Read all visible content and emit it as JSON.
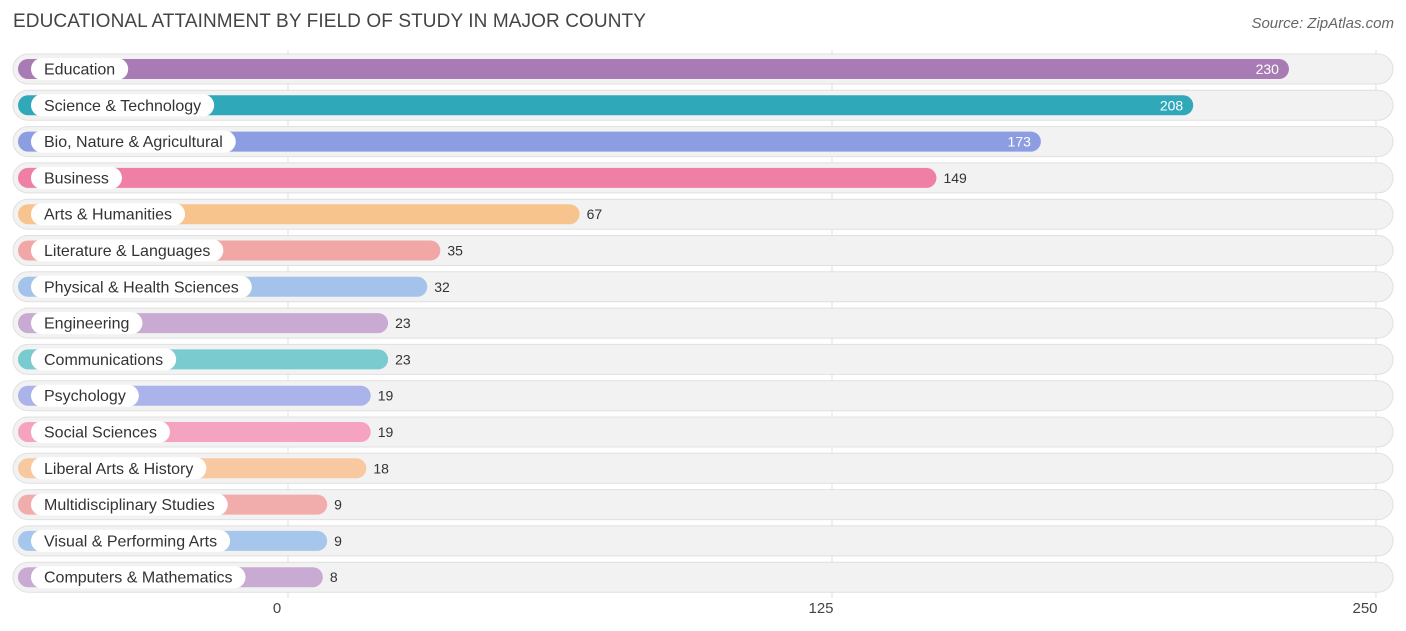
{
  "header": {
    "title": "EDUCATIONAL ATTAINMENT BY FIELD OF STUDY IN MAJOR COUNTY",
    "source": "Source: ZipAtlas.com"
  },
  "chart_data": {
    "type": "bar",
    "orientation": "horizontal",
    "title": "EDUCATIONAL ATTAINMENT BY FIELD OF STUDY IN MAJOR COUNTY",
    "xlim": [
      0,
      250
    ],
    "xticks": [
      0,
      125,
      250
    ],
    "grid": true,
    "categories": [
      "Education",
      "Science & Technology",
      "Bio, Nature & Agricultural",
      "Business",
      "Arts & Humanities",
      "Literature & Languages",
      "Physical & Health Sciences",
      "Engineering",
      "Communications",
      "Psychology",
      "Social Sciences",
      "Liberal Arts & History",
      "Multidisciplinary Studies",
      "Visual & Performing Arts",
      "Computers & Mathematics"
    ],
    "values": [
      230,
      208,
      173,
      149,
      67,
      35,
      32,
      23,
      23,
      19,
      19,
      18,
      9,
      9,
      8
    ],
    "colors": [
      "#a97bb5",
      "#2fa8b9",
      "#8d9de2",
      "#f07fa5",
      "#f8c48e",
      "#f0a7a5",
      "#a4c3ea",
      "#c8aad2",
      "#79cbcf",
      "#aab3ea",
      "#f5a3c1",
      "#f8c9a0",
      "#f1adac",
      "#a6c6ec",
      "#c9aad2"
    ]
  }
}
